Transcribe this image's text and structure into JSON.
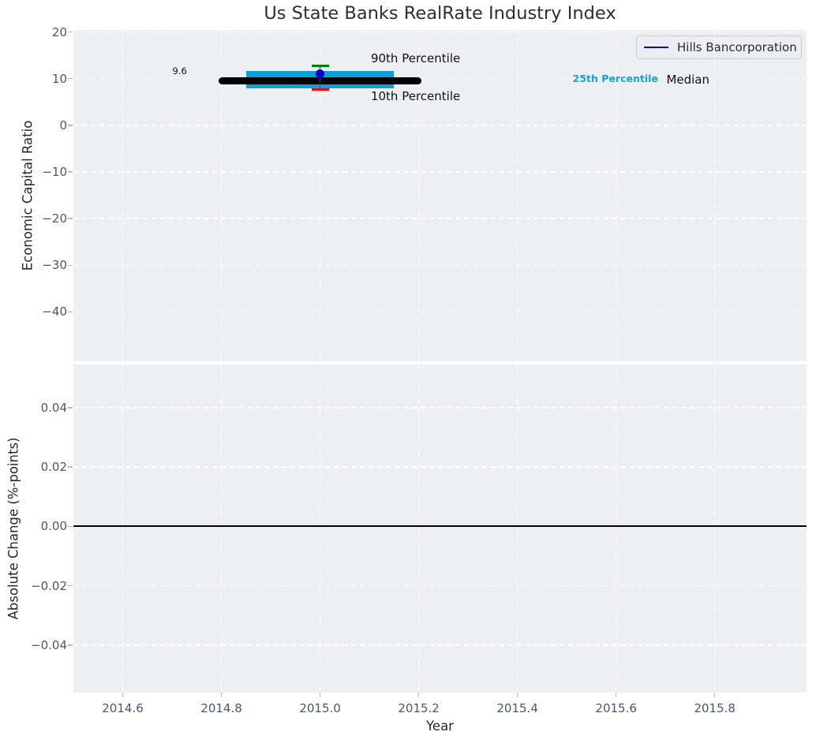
{
  "figure": {
    "background": "#ffffff",
    "panel_background": "#ecf0f2",
    "grid_color": "#ffffff",
    "tick_label_color": "#49566c"
  },
  "chart_data": [
    {
      "type": "scatter",
      "title": "Us State Banks RealRate Industry Index",
      "ylabel": "Economic Capital Ratio",
      "xlim": [
        2014.5,
        2015.986
      ],
      "ylim": [
        -50.57,
        20.44
      ],
      "grid": true,
      "legend_position": "upper right",
      "legend": {
        "entries": [
          {
            "label": "Hills Bancorporation",
            "color": "#0000ee"
          }
        ]
      },
      "xticks": [
        {
          "v": 2014.6,
          "label": "2014.6"
        },
        {
          "v": 2014.8,
          "label": "2014.8"
        },
        {
          "v": 2015.0,
          "label": "2015.0"
        },
        {
          "v": 2015.2,
          "label": "2015.2"
        },
        {
          "v": 2015.4,
          "label": "2015.4"
        },
        {
          "v": 2015.6,
          "label": "2015.6"
        },
        {
          "v": 2015.8,
          "label": "2015.8"
        }
      ],
      "yticks": [
        {
          "v": 20,
          "label": "20"
        },
        {
          "v": 10,
          "label": "10"
        },
        {
          "v": 0,
          "label": "0"
        },
        {
          "v": -10,
          "label": "−10"
        },
        {
          "v": -20,
          "label": "−20"
        },
        {
          "v": -30,
          "label": "−30"
        },
        {
          "v": -40,
          "label": "−40"
        }
      ],
      "series": {
        "median": {
          "name": "Median",
          "value": 9.6,
          "value_label": "9.6",
          "x_start": 2014.795,
          "x_end": 2015.205,
          "color": "#000000"
        },
        "interquartile_band": {
          "name": "25th Percentile band",
          "low": 7.9,
          "high": 11.7,
          "x_start": 2014.85,
          "x_end": 2015.15,
          "color": "#0f9fd6"
        },
        "percentile_90": {
          "name": "90th Percentile",
          "x": 2015.0,
          "value": 12.7,
          "color": "#008000"
        },
        "percentile_10": {
          "name": "10th Percentile",
          "x": 2015.0,
          "value": 7.6,
          "color": "#ff0000"
        },
        "company_point": {
          "name": "Hills Bancorporation",
          "x": 2015.0,
          "value": 11.0,
          "color": "#0000cd"
        }
      },
      "annotations": [
        {
          "id": "90th-percentile",
          "text": "90th Percentile",
          "x": 2015.103,
          "y": 14.35,
          "color": "#111111",
          "size": 15,
          "bold": false,
          "anchor": "left"
        },
        {
          "id": "10th-percentile",
          "text": "10th Percentile",
          "x": 2015.103,
          "y": 6.32,
          "color": "#111111",
          "size": 15,
          "bold": false,
          "anchor": "left"
        },
        {
          "id": "25th-percentile",
          "text": "25th Percentile",
          "x": 2015.512,
          "y": 9.96,
          "color": "#18a0d8",
          "size": 12.5,
          "bold": true,
          "anchor": "left"
        },
        {
          "id": "median",
          "text": "Median",
          "x": 2015.702,
          "y": 9.73,
          "color": "#111111",
          "size": 15,
          "bold": false,
          "anchor": "left"
        },
        {
          "id": "median-value",
          "text": "9.6",
          "x": 2014.73,
          "y": 11.48,
          "color": "#111111",
          "size": 11.5,
          "bold": false,
          "anchor": "right"
        }
      ]
    },
    {
      "type": "line",
      "ylabel": "Absolute Change (%-points)",
      "xlabel": "Year",
      "xlim": [
        2014.5,
        2015.986
      ],
      "ylim": [
        -0.056,
        0.0546
      ],
      "grid": true,
      "xticks": [
        {
          "v": 2014.6,
          "label": "2014.6"
        },
        {
          "v": 2014.8,
          "label": "2014.8"
        },
        {
          "v": 2015.0,
          "label": "2015.0"
        },
        {
          "v": 2015.2,
          "label": "2015.2"
        },
        {
          "v": 2015.4,
          "label": "2015.4"
        },
        {
          "v": 2015.6,
          "label": "2015.6"
        },
        {
          "v": 2015.8,
          "label": "2015.8"
        }
      ],
      "yticks": [
        {
          "v": 0.04,
          "label": "0.04"
        },
        {
          "v": 0.02,
          "label": "0.02"
        },
        {
          "v": 0.0,
          "label": "0.00"
        },
        {
          "v": -0.02,
          "label": "−0.02"
        },
        {
          "v": -0.04,
          "label": "−0.04"
        }
      ],
      "zero_line": {
        "y": 0.0,
        "color": "#000000"
      },
      "series": []
    }
  ]
}
